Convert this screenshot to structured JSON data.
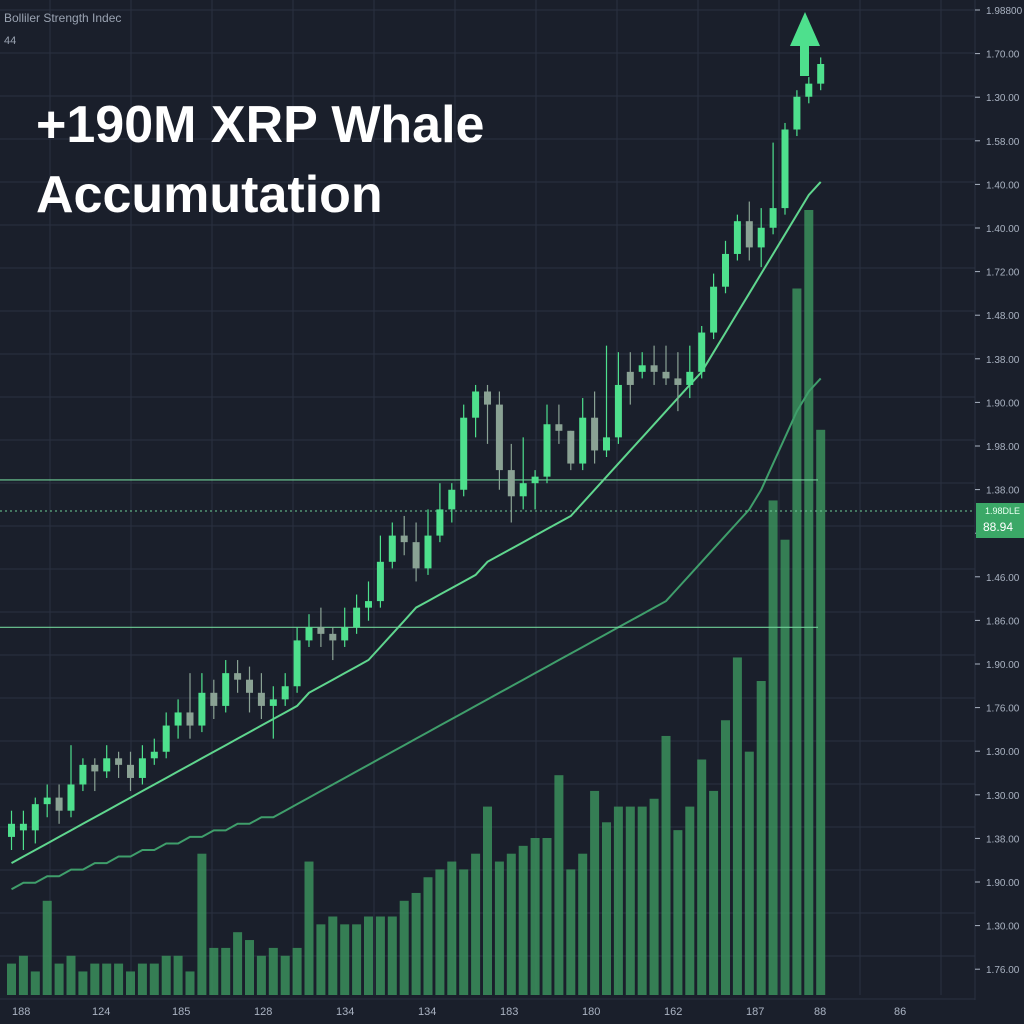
{
  "header": {
    "indicator_label": "Bolliler Strength Indec",
    "indicator_sub": "44"
  },
  "headline": {
    "line1": "+190M XRP Whale",
    "line2": "Accumutation"
  },
  "price_badge": {
    "top": "1.98DLE",
    "value": "88.94"
  },
  "colors": {
    "background": "#1a1f2b",
    "grid": "#2a3140",
    "up": "#4ee08d",
    "down": "#8aa294",
    "volume": "#3b8f5c",
    "ma_fast": "#5fd68e",
    "ma_slow": "#3f9e6b",
    "level": "#6fcf97",
    "badge": "#3ba867",
    "axis_text": "#aab3c2"
  },
  "chart_data": {
    "type": "candlestick",
    "x_tick_labels": [
      "188",
      "124",
      "185",
      "128",
      "134",
      "134",
      "183",
      "180",
      "162",
      "187",
      "88",
      "86"
    ],
    "y_tick_labels": [
      "1.98800",
      "1.70.00",
      "1.30.00",
      "1.58.00",
      "1.40.00",
      "1.40.00",
      "1.72.00",
      "1.48.00",
      "1.38.00",
      "1.90.00",
      "1.98.00",
      "1.38.00",
      "1.48.00",
      "1.46.00",
      "1.86.00",
      "1.90.00",
      "1.76.00",
      "1.30.00",
      "1.30.00",
      "1.38.00",
      "1.90.00",
      "1.30.00",
      "1.76.00"
    ],
    "candles": [
      [
        22,
        24,
        20,
        26,
        1
      ],
      [
        24,
        23,
        20,
        26,
        1
      ],
      [
        23,
        27,
        21,
        28,
        1
      ],
      [
        27,
        28,
        25,
        30,
        1
      ],
      [
        28,
        26,
        24,
        30,
        0
      ],
      [
        26,
        30,
        25,
        36,
        1
      ],
      [
        30,
        33,
        29,
        34,
        1
      ],
      [
        33,
        32,
        29,
        34,
        0
      ],
      [
        32,
        34,
        31,
        36,
        1
      ],
      [
        34,
        33,
        31,
        35,
        0
      ],
      [
        33,
        31,
        29,
        35,
        0
      ],
      [
        31,
        34,
        30,
        36,
        1
      ],
      [
        34,
        35,
        33,
        37,
        1
      ],
      [
        35,
        39,
        34,
        41,
        1
      ],
      [
        39,
        41,
        37,
        43,
        1
      ],
      [
        41,
        39,
        37,
        47,
        0
      ],
      [
        39,
        44,
        38,
        47,
        1
      ],
      [
        44,
        42,
        40,
        46,
        0
      ],
      [
        42,
        47,
        41,
        49,
        1
      ],
      [
        47,
        46,
        44,
        49,
        0
      ],
      [
        46,
        44,
        41,
        48,
        0
      ],
      [
        44,
        42,
        40,
        47,
        0
      ],
      [
        42,
        43,
        37,
        45,
        1
      ],
      [
        43,
        45,
        42,
        47,
        1
      ],
      [
        45,
        52,
        44,
        54,
        1
      ],
      [
        52,
        54,
        51,
        56,
        1
      ],
      [
        54,
        53,
        51,
        57,
        0
      ],
      [
        53,
        52,
        49,
        54,
        0
      ],
      [
        52,
        54,
        51,
        57,
        1
      ],
      [
        54,
        57,
        53,
        59,
        1
      ],
      [
        57,
        58,
        55,
        61,
        1
      ],
      [
        58,
        64,
        57,
        68,
        1
      ],
      [
        64,
        68,
        63,
        70,
        1
      ],
      [
        68,
        67,
        65,
        71,
        0
      ],
      [
        67,
        63,
        61,
        70,
        0
      ],
      [
        63,
        68,
        62,
        72,
        1
      ],
      [
        68,
        72,
        67,
        76,
        1
      ],
      [
        72,
        75,
        70,
        76,
        1
      ],
      [
        75,
        86,
        74,
        88,
        1
      ],
      [
        86,
        90,
        83,
        91,
        1
      ],
      [
        90,
        88,
        82,
        91,
        0
      ],
      [
        88,
        78,
        75,
        90,
        0
      ],
      [
        78,
        74,
        70,
        82,
        0
      ],
      [
        74,
        76,
        72,
        83,
        1
      ],
      [
        76,
        77,
        72,
        78,
        1
      ],
      [
        77,
        85,
        76,
        88,
        1
      ],
      [
        85,
        84,
        82,
        88,
        0
      ],
      [
        84,
        79,
        78,
        84,
        0
      ],
      [
        79,
        86,
        78,
        89,
        1
      ],
      [
        86,
        81,
        79,
        90,
        0
      ],
      [
        81,
        83,
        80,
        97,
        1
      ],
      [
        83,
        91,
        82,
        96,
        1
      ],
      [
        91,
        93,
        88,
        96,
        0
      ],
      [
        93,
        94,
        92,
        96,
        1
      ],
      [
        94,
        93,
        91,
        97,
        0
      ],
      [
        93,
        92,
        91,
        97,
        0
      ],
      [
        92,
        91,
        87,
        96,
        0
      ],
      [
        91,
        93,
        89,
        97,
        1
      ],
      [
        93,
        99,
        92,
        100,
        1
      ],
      [
        99,
        106,
        98,
        108,
        1
      ],
      [
        106,
        111,
        105,
        113,
        1
      ],
      [
        111,
        116,
        110,
        117,
        1
      ],
      [
        116,
        112,
        110,
        119,
        0
      ],
      [
        112,
        115,
        109,
        118,
        1
      ],
      [
        115,
        118,
        114,
        128,
        1
      ],
      [
        118,
        130,
        117,
        131,
        1
      ],
      [
        130,
        135,
        129,
        136,
        1
      ],
      [
        135,
        137,
        134,
        138,
        1
      ],
      [
        137,
        140,
        136,
        141,
        1
      ]
    ],
    "volume": [
      4,
      5,
      3,
      12,
      4,
      5,
      3,
      4,
      4,
      4,
      3,
      4,
      4,
      5,
      5,
      3,
      18,
      6,
      6,
      8,
      7,
      5,
      6,
      5,
      6,
      17,
      9,
      10,
      9,
      9,
      10,
      10,
      10,
      12,
      13,
      15,
      16,
      17,
      16,
      18,
      24,
      17,
      18,
      19,
      20,
      20,
      28,
      16,
      18,
      26,
      22,
      24,
      24,
      24,
      25,
      33,
      21,
      24,
      30,
      26,
      35,
      43,
      31,
      40,
      63,
      58,
      90,
      100,
      72
    ],
    "ma_fast": [
      18,
      19,
      20,
      21,
      22,
      23,
      24,
      25,
      26,
      27,
      28,
      29,
      30,
      31,
      32,
      33,
      34,
      35,
      36,
      37,
      38,
      39,
      40,
      41,
      42,
      44,
      45,
      46,
      47,
      48,
      49,
      51,
      53,
      55,
      57,
      58,
      59,
      60,
      61,
      62,
      64,
      65,
      66,
      67,
      68,
      69,
      70,
      71,
      73,
      75,
      77,
      79,
      81,
      83,
      85,
      87,
      89,
      91,
      93,
      96,
      99,
      102,
      105,
      108,
      111,
      114,
      117,
      120,
      122
    ],
    "ma_slow": [
      14,
      15,
      15,
      16,
      16,
      17,
      17,
      18,
      18,
      19,
      19,
      20,
      20,
      21,
      21,
      22,
      22,
      23,
      23,
      24,
      24,
      25,
      25,
      26,
      27,
      28,
      29,
      30,
      31,
      32,
      33,
      34,
      35,
      36,
      37,
      38,
      39,
      40,
      41,
      42,
      43,
      44,
      45,
      46,
      47,
      48,
      49,
      50,
      51,
      52,
      53,
      54,
      55,
      56,
      57,
      58,
      60,
      62,
      64,
      66,
      68,
      70,
      72,
      75,
      79,
      83,
      87,
      90,
      92
    ],
    "levels": [
      76.5,
      54
    ]
  }
}
